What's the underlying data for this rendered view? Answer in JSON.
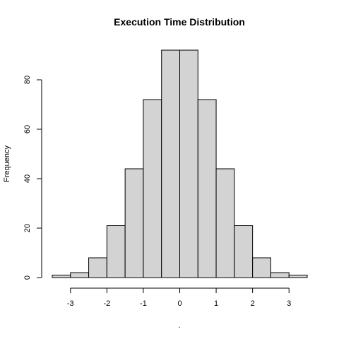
{
  "chart_data": {
    "type": "bar",
    "title": "Execution Time Distribution",
    "xlabel": ".",
    "ylabel": "Frequency",
    "bin_edges": [
      -3.5,
      -3.0,
      -2.5,
      -2.0,
      -1.5,
      -1.0,
      -0.5,
      0.0,
      0.5,
      1.0,
      1.5,
      2.0,
      2.5,
      3.0,
      3.5
    ],
    "values": [
      1,
      2,
      8,
      21,
      44,
      72,
      92,
      92,
      72,
      44,
      21,
      8,
      2,
      1
    ],
    "xlim": [
      -3.5,
      3.5
    ],
    "ylim": [
      0,
      92
    ],
    "x_ticks": [
      -3,
      -2,
      -1,
      0,
      1,
      2,
      3
    ],
    "x_tick_labels": [
      "-3",
      "-2",
      "-1",
      "0",
      "1",
      "2",
      "3"
    ],
    "y_ticks": [
      0,
      20,
      40,
      60,
      80
    ],
    "y_tick_labels": [
      "0",
      "20",
      "40",
      "60",
      "80"
    ],
    "grid": false,
    "bar_color": "#d3d3d3",
    "edge_color": "#000000"
  }
}
